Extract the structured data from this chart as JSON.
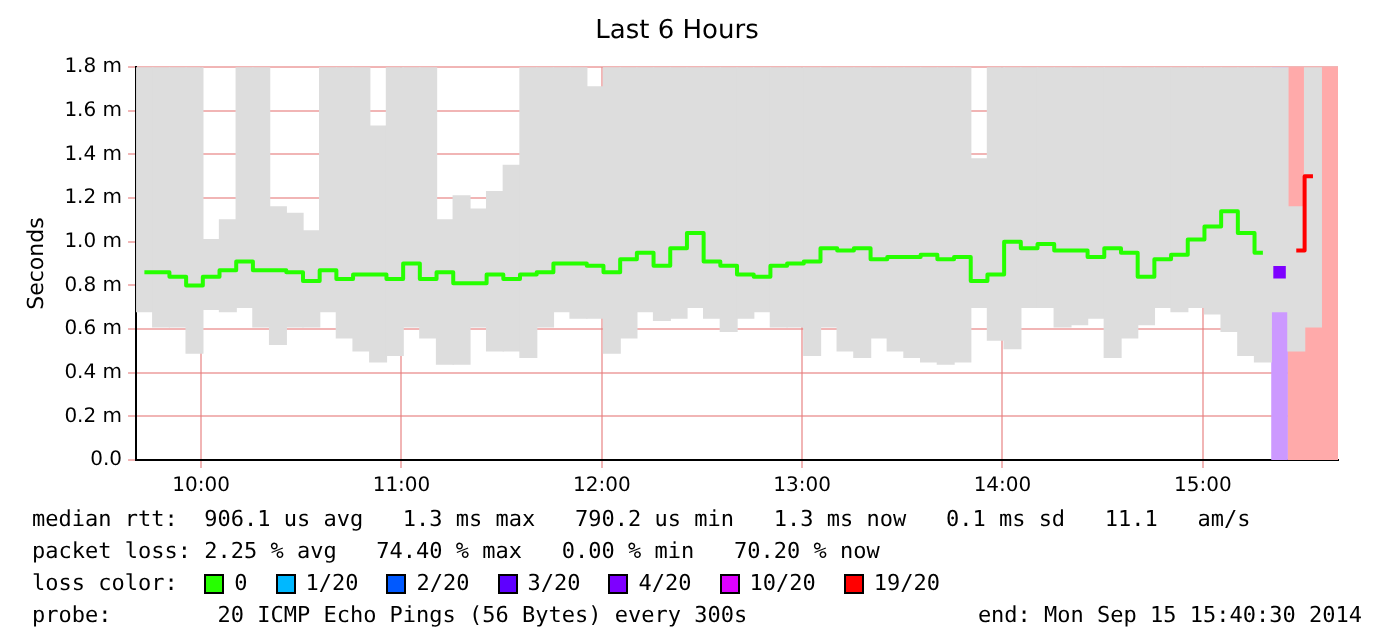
{
  "chart_data": {
    "type": "step",
    "title": "Last 6 Hours",
    "ylabel": "Seconds",
    "legend_title": "loss color:",
    "legend": "bottom",
    "grid": true,
    "marker": "none",
    "annotations": [
      "median rtt:  906.1 us avg   1.3 ms max   790.2 us min   1.3 ms now   0.1 ms sd   11.1   am/s",
      "packet loss: 2.25 % avg   74.40 % max   0.00 % min   70.20 % now",
      "probe:        20 ICMP Echo Pings (56 Bytes) every 300s",
      "end: Mon Sep 15 15:40:30 2014"
    ],
    "xlim": [
      9.675,
      15.675
    ],
    "xticks": [
      {
        "value": 10,
        "label": "10:00"
      },
      {
        "value": 11,
        "label": "11:00"
      },
      {
        "value": 12,
        "label": "12:00"
      },
      {
        "value": 13,
        "label": "13:00"
      },
      {
        "value": 14,
        "label": "14:00"
      },
      {
        "value": 15,
        "label": "15:00"
      }
    ],
    "ylim": [
      0,
      1.8
    ],
    "yticks": [
      {
        "value": 0,
        "label": "0.0"
      },
      {
        "value": 0.2,
        "label": "0.2 m"
      },
      {
        "value": 0.4,
        "label": "0.4 m"
      },
      {
        "value": 0.6,
        "label": "0.6 m"
      },
      {
        "value": 0.8,
        "label": "0.8 m"
      },
      {
        "value": 1,
        "label": "1.0 m"
      },
      {
        "value": 1.2,
        "label": "1.2 m"
      },
      {
        "value": 1.4,
        "label": "1.4 m"
      },
      {
        "value": 1.6,
        "label": "1.6 m"
      },
      {
        "value": 1.8,
        "label": "1.8 m"
      }
    ],
    "x": [
      9.7167,
      9.8,
      9.8833,
      9.9667,
      10.05,
      10.1333,
      10.2167,
      10.3,
      10.3833,
      10.4667,
      10.55,
      10.6333,
      10.7167,
      10.8,
      10.8833,
      10.9667,
      11.05,
      11.1333,
      11.2167,
      11.3,
      11.3833,
      11.4667,
      11.55,
      11.6333,
      11.7167,
      11.8,
      11.8833,
      11.9667,
      12.05,
      12.1333,
      12.2167,
      12.3,
      12.3833,
      12.4667,
      12.55,
      12.6333,
      12.7167,
      12.8,
      12.8833,
      12.9667,
      13.05,
      13.1333,
      13.2167,
      13.3,
      13.3833,
      13.4667,
      13.55,
      13.6333,
      13.7167,
      13.8,
      13.8833,
      13.9667,
      14.05,
      14.1333,
      14.2167,
      14.3,
      14.3833,
      14.4667,
      14.55,
      14.6333,
      14.7167,
      14.8,
      14.8833,
      14.9667,
      15.05,
      15.1333,
      15.2167,
      15.3,
      15.3833,
      15.4667,
      15.55
    ],
    "bands": [
      {
        "axis": "x",
        "from": 15.3417,
        "to": 15.425,
        "color": "#cc99ff"
      },
      {
        "axis": "x",
        "from": 15.425,
        "to": 15.675,
        "color": "#ffaaaa"
      }
    ],
    "series": [
      {
        "type": "bar",
        "color": "#dddddd",
        "base": [
          0.68,
          0.61,
          0.61,
          0.49,
          0.69,
          0.68,
          0.7,
          0.61,
          0.53,
          0.61,
          0.61,
          0.68,
          0.56,
          0.5,
          0.45,
          0.48,
          0.61,
          0.56,
          0.44,
          0.44,
          0.61,
          0.5,
          0.5,
          0.47,
          0.61,
          0.68,
          0.65,
          0.65,
          0.49,
          0.56,
          0.68,
          0.64,
          0.65,
          0.7,
          0.65,
          0.59,
          0.65,
          0.68,
          0.61,
          0.61,
          0.48,
          0.61,
          0.5,
          0.47,
          0.56,
          0.5,
          0.47,
          0.45,
          0.44,
          0.45,
          0.7,
          0.55,
          0.51,
          0.7,
          0.7,
          0.61,
          0.62,
          0.65,
          0.47,
          0.56,
          0.62,
          0.7,
          0.68,
          0.7,
          0.67,
          0.59,
          0.48,
          0.45,
          0.68,
          0.5,
          0.61
        ],
        "values": [
          1.12,
          1.19,
          1.19,
          1.31,
          0.32,
          0.42,
          1.1,
          1.19,
          0.63,
          0.52,
          0.44,
          1.12,
          1.24,
          1.3,
          1.08,
          1.32,
          1.19,
          1.24,
          0.66,
          0.77,
          0.54,
          0.73,
          0.85,
          1.33,
          1.19,
          1.12,
          1.15,
          1.06,
          1.31,
          1.24,
          1.12,
          1.16,
          1.15,
          1.1,
          1.15,
          1.21,
          1.15,
          1.12,
          1.19,
          1.19,
          1.32,
          1.19,
          1.3,
          1.33,
          1.24,
          1.3,
          1.33,
          1.35,
          1.36,
          1.35,
          0.68,
          1.25,
          1.29,
          1.1,
          1.1,
          1.19,
          1.18,
          1.15,
          1.33,
          1.24,
          1.18,
          1.1,
          1.12,
          1.1,
          1.13,
          1.21,
          1.32,
          1.35,
          1.12,
          0.66,
          1.19
        ]
      },
      {
        "name": "0",
        "color": "#26ff00",
        "values": [
          0.86,
          0.86,
          0.84,
          0.8,
          0.84,
          0.87,
          0.91,
          0.87,
          0.87,
          0.86,
          0.82,
          0.87,
          0.83,
          0.85,
          0.85,
          0.83,
          0.9,
          0.83,
          0.86,
          0.81,
          0.81,
          0.85,
          0.83,
          0.85,
          0.86,
          0.9,
          0.9,
          0.89,
          0.86,
          0.92,
          0.95,
          0.89,
          0.97,
          1.04,
          0.91,
          0.89,
          0.85,
          0.84,
          0.89,
          0.9,
          0.91,
          0.97,
          0.96,
          0.97,
          0.92,
          0.93,
          0.93,
          0.94,
          0.92,
          0.93,
          0.82,
          0.85,
          1,
          0.97,
          0.99,
          0.96,
          0.96,
          0.93,
          0.97,
          0.95,
          0.84,
          0.92,
          0.94,
          1.01,
          1.07,
          1.14,
          1.04,
          0.95,
          null,
          null,
          null
        ]
      },
      {
        "name": "1/20",
        "color": "#00b8ff",
        "values": [
          null,
          null,
          null,
          null,
          null,
          null,
          null,
          null,
          null,
          null,
          null,
          null,
          null,
          null,
          null,
          null,
          null,
          null,
          null,
          null,
          null,
          null,
          null,
          null,
          null,
          null,
          null,
          null,
          null,
          null,
          null,
          null,
          null,
          null,
          null,
          null,
          null,
          null,
          null,
          null,
          null,
          null,
          null,
          null,
          null,
          null,
          null,
          null,
          null,
          null,
          null,
          null,
          null,
          null,
          null,
          null,
          null,
          null,
          null,
          null,
          null,
          null,
          null,
          null,
          null,
          null,
          null,
          null,
          null,
          null,
          null
        ]
      },
      {
        "name": "2/20",
        "color": "#0059ff",
        "values": [
          null,
          null,
          null,
          null,
          null,
          null,
          null,
          null,
          null,
          null,
          null,
          null,
          null,
          null,
          null,
          null,
          null,
          null,
          null,
          null,
          null,
          null,
          null,
          null,
          null,
          null,
          null,
          null,
          null,
          null,
          null,
          null,
          null,
          null,
          null,
          null,
          null,
          null,
          null,
          null,
          null,
          null,
          null,
          null,
          null,
          null,
          null,
          null,
          null,
          null,
          null,
          null,
          null,
          null,
          null,
          null,
          null,
          null,
          null,
          null,
          null,
          null,
          null,
          null,
          null,
          null,
          null,
          null,
          null,
          null,
          null
        ]
      },
      {
        "name": "3/20",
        "color": "#5e00ff",
        "values": [
          null,
          null,
          null,
          null,
          null,
          null,
          null,
          null,
          null,
          null,
          null,
          null,
          null,
          null,
          null,
          null,
          null,
          null,
          null,
          null,
          null,
          null,
          null,
          null,
          null,
          null,
          null,
          null,
          null,
          null,
          null,
          null,
          null,
          null,
          null,
          null,
          null,
          null,
          null,
          null,
          null,
          null,
          null,
          null,
          null,
          null,
          null,
          null,
          null,
          null,
          null,
          null,
          null,
          null,
          null,
          null,
          null,
          null,
          null,
          null,
          null,
          null,
          null,
          null,
          null,
          null,
          null,
          null,
          null,
          null,
          null
        ]
      },
      {
        "name": "4/20",
        "color": "#7e00ff",
        "marker": "square",
        "values": [
          null,
          null,
          null,
          null,
          null,
          null,
          null,
          null,
          null,
          null,
          null,
          null,
          null,
          null,
          null,
          null,
          null,
          null,
          null,
          null,
          null,
          null,
          null,
          null,
          null,
          null,
          null,
          null,
          null,
          null,
          null,
          null,
          null,
          null,
          null,
          null,
          null,
          null,
          null,
          null,
          null,
          null,
          null,
          null,
          null,
          null,
          null,
          null,
          null,
          null,
          null,
          null,
          null,
          null,
          null,
          null,
          null,
          null,
          null,
          null,
          null,
          null,
          null,
          null,
          null,
          null,
          null,
          null,
          0.86,
          null,
          null
        ]
      },
      {
        "name": "10/20",
        "color": "#dd00ff",
        "values": [
          null,
          null,
          null,
          null,
          null,
          null,
          null,
          null,
          null,
          null,
          null,
          null,
          null,
          null,
          null,
          null,
          null,
          null,
          null,
          null,
          null,
          null,
          null,
          null,
          null,
          null,
          null,
          null,
          null,
          null,
          null,
          null,
          null,
          null,
          null,
          null,
          null,
          null,
          null,
          null,
          null,
          null,
          null,
          null,
          null,
          null,
          null,
          null,
          null,
          null,
          null,
          null,
          null,
          null,
          null,
          null,
          null,
          null,
          null,
          null,
          null,
          null,
          null,
          null,
          null,
          null,
          null,
          null,
          null,
          null,
          null
        ]
      },
      {
        "name": "19/20",
        "color": "#ff0000",
        "values": [
          null,
          null,
          null,
          null,
          null,
          null,
          null,
          null,
          null,
          null,
          null,
          null,
          null,
          null,
          null,
          null,
          null,
          null,
          null,
          null,
          null,
          null,
          null,
          null,
          null,
          null,
          null,
          null,
          null,
          null,
          null,
          null,
          null,
          null,
          null,
          null,
          null,
          null,
          null,
          null,
          null,
          null,
          null,
          null,
          null,
          null,
          null,
          null,
          null,
          null,
          null,
          null,
          null,
          null,
          null,
          null,
          null,
          null,
          null,
          null,
          null,
          null,
          null,
          null,
          null,
          null,
          null,
          null,
          null,
          0.96,
          1.3
        ]
      }
    ]
  }
}
